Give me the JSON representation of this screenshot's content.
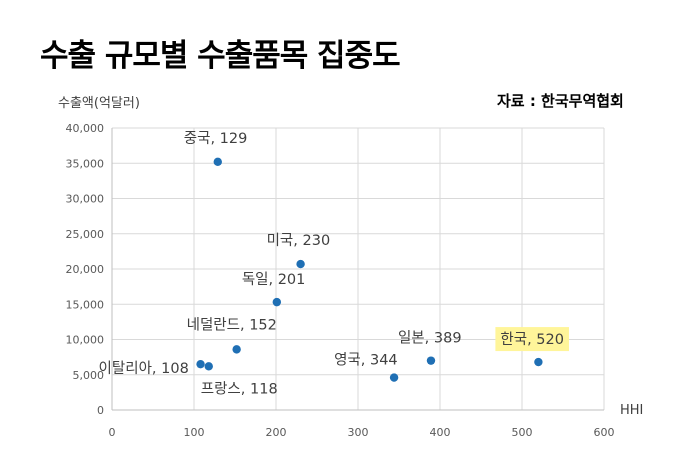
{
  "title": "수출 규모별 수출품목 집중도",
  "source": "자료 : 한국무역협회",
  "chart_data": {
    "type": "scatter",
    "ylabel": "수출액(억달러)",
    "xlabel": "HHI",
    "xlim": [
      0,
      600
    ],
    "ylim": [
      0,
      40000
    ],
    "xticks": [
      0,
      100,
      200,
      300,
      400,
      500,
      600
    ],
    "xtick_labels": [
      "0",
      "100",
      "200",
      "300",
      "400",
      "500",
      "600"
    ],
    "yticks": [
      0,
      5000,
      10000,
      15000,
      20000,
      25000,
      30000,
      35000,
      40000
    ],
    "ytick_labels": [
      "0",
      "5,000",
      "10,000",
      "15,000",
      "20,000",
      "25,000",
      "30,000",
      "35,000",
      "40,000"
    ],
    "grid": true,
    "marker_color": "#1f6fb4",
    "highlight_color": "#fff59a",
    "points": [
      {
        "label": "중국, 129",
        "x": 129,
        "y": 35200
      },
      {
        "label": "미국, 230",
        "x": 230,
        "y": 20700
      },
      {
        "label": "독일, 201",
        "x": 201,
        "y": 15300
      },
      {
        "label": "네덜란드, 152",
        "x": 152,
        "y": 8600
      },
      {
        "label": "이탈리아, 108",
        "x": 108,
        "y": 6500
      },
      {
        "label": "프랑스, 118",
        "x": 118,
        "y": 6200
      },
      {
        "label": "영국, 344",
        "x": 344,
        "y": 4600
      },
      {
        "label": "일본, 389",
        "x": 389,
        "y": 7000
      },
      {
        "label": "한국, 520",
        "x": 520,
        "y": 6800,
        "highlight": true
      }
    ]
  }
}
